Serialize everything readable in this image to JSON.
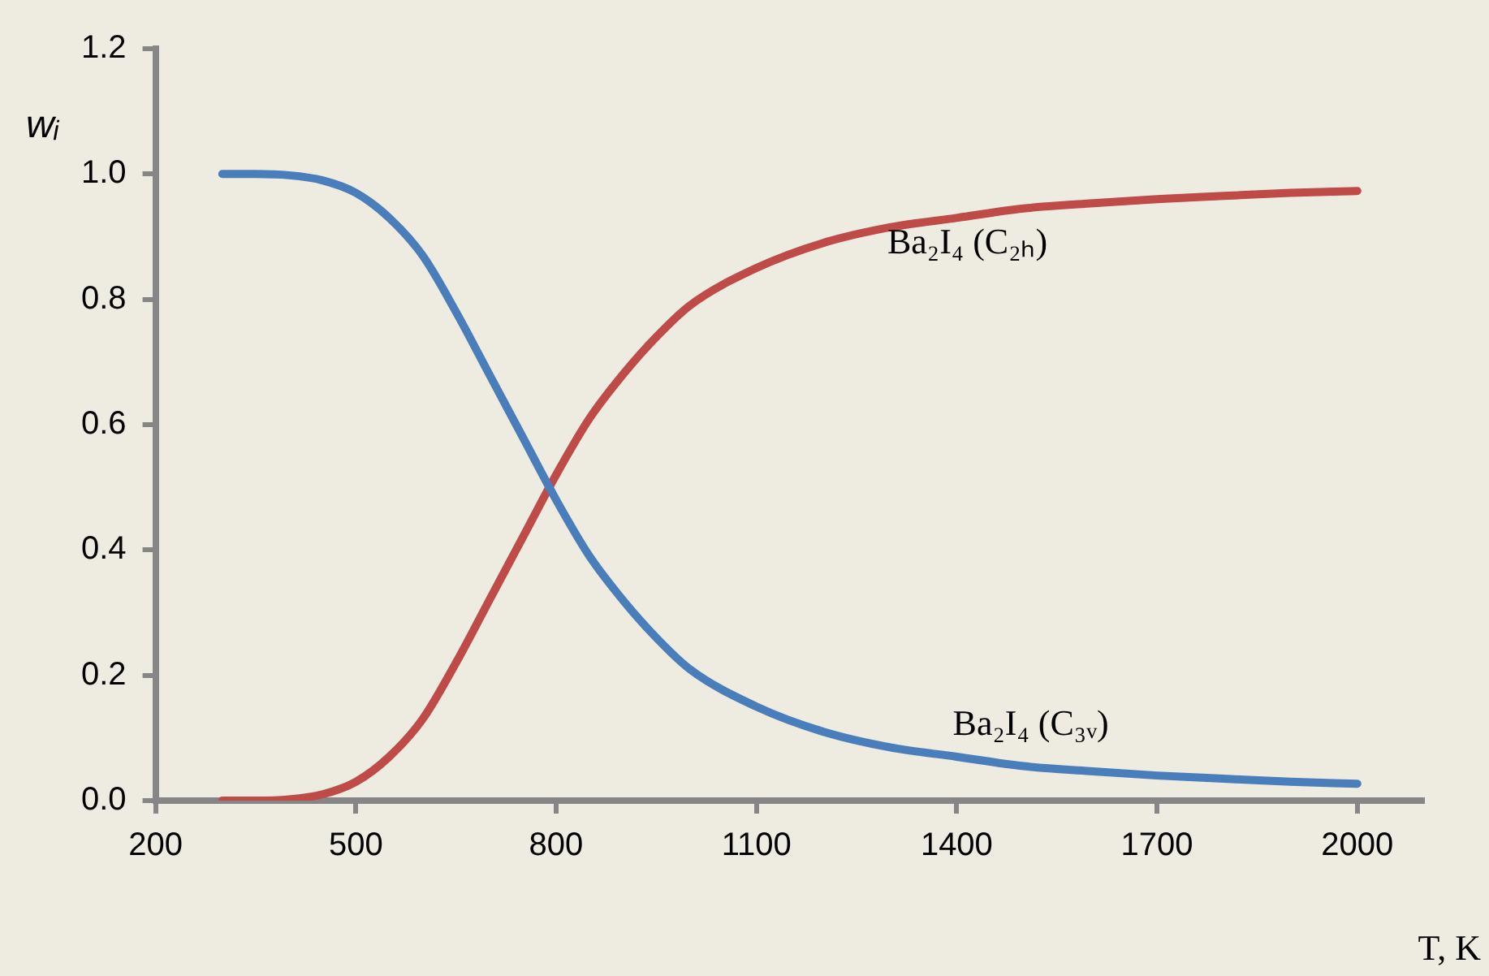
{
  "chart_data": {
    "type": "line",
    "xlabel": "T, K",
    "ylabel": "wᵢ",
    "xlim": [
      200,
      2100
    ],
    "xticks": [
      200,
      500,
      800,
      1100,
      1400,
      1700,
      2000
    ],
    "ylim": [
      0,
      1.2
    ],
    "yticks": [
      {
        "value": 0,
        "label": "0.0"
      },
      {
        "value": 0.2,
        "label": "0.2"
      },
      {
        "value": 0.4,
        "label": "0.4"
      },
      {
        "value": 0.6,
        "label": "0.6"
      },
      {
        "value": 0.8,
        "label": "0.8"
      },
      {
        "value": 1,
        "label": "1.0"
      },
      {
        "value": 1.2,
        "label": "1.2"
      }
    ],
    "grid": false,
    "legend": false,
    "marker": "none",
    "line_style": "solid",
    "x": [
      300,
      350,
      400,
      450,
      500,
      550,
      600,
      650,
      700,
      750,
      800,
      850,
      900,
      950,
      1000,
      1100,
      1200,
      1300,
      1400,
      1500,
      1600,
      1700,
      1800,
      1900,
      2000
    ],
    "series": [
      {
        "color": "#4a7ebb",
        "values": [
          1.0,
          1.0,
          0.998,
          0.99,
          0.97,
          0.93,
          0.87,
          0.78,
          0.68,
          0.58,
          0.48,
          0.39,
          0.32,
          0.26,
          0.21,
          0.15,
          0.11,
          0.085,
          0.07,
          0.055,
          0.047,
          0.04,
          0.035,
          0.03,
          0.027
        ]
      },
      {
        "color": "#be4b48",
        "values": [
          0.0,
          0.0,
          0.002,
          0.01,
          0.03,
          0.07,
          0.13,
          0.22,
          0.32,
          0.42,
          0.52,
          0.61,
          0.68,
          0.74,
          0.79,
          0.85,
          0.89,
          0.915,
          0.93,
          0.945,
          0.953,
          0.96,
          0.965,
          0.97,
          0.973
        ]
      }
    ],
    "annotations": [
      "Ba₂I₄ (C₂ₕ)",
      "Ba₂I₄ (C₃ᵥ)"
    ]
  }
}
